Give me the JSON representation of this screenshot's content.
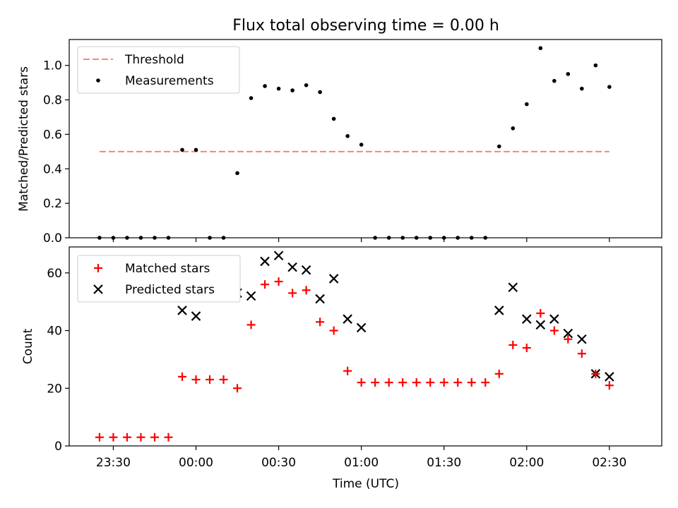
{
  "figure": {
    "title": "Flux total observing time = 0.00 h"
  },
  "chart_data": [
    {
      "type": "scatter",
      "ylabel": "Matched/Predicted stars",
      "ylim": [
        0.0,
        1.15
      ],
      "yticks": [
        "0.0",
        "0.2",
        "0.4",
        "0.6",
        "0.8",
        "1.0"
      ],
      "ytick_values": [
        0.0,
        0.2,
        0.4,
        0.6,
        0.8,
        1.0
      ],
      "legend_position": "upper-left",
      "legend": [
        "Threshold",
        "Measurements"
      ],
      "threshold": {
        "name": "Threshold",
        "y": 0.5,
        "x_start": "23:25",
        "x_end": "02:30",
        "color": "#ff8080"
      },
      "series": [
        {
          "name": "Measurements",
          "color": "#000000",
          "x": [
            "23:25",
            "23:30",
            "23:35",
            "23:40",
            "23:45",
            "23:50",
            "23:55",
            "00:00",
            "00:05",
            "00:10",
            "00:15",
            "00:20",
            "00:25",
            "00:30",
            "00:35",
            "00:40",
            "00:45",
            "00:50",
            "00:55",
            "01:00",
            "01:05",
            "01:10",
            "01:15",
            "01:20",
            "01:25",
            "01:30",
            "01:35",
            "01:40",
            "01:45",
            "01:50",
            "01:55",
            "02:00",
            "02:05",
            "02:10",
            "02:15",
            "02:20",
            "02:25",
            "02:30"
          ],
          "y": [
            0,
            0,
            0,
            0,
            0,
            0,
            0.51,
            0.51,
            0,
            0,
            0.375,
            0.81,
            0.88,
            0.865,
            0.855,
            0.885,
            0.845,
            0.69,
            0.59,
            0.54,
            0,
            0,
            0,
            0,
            0,
            0,
            0,
            0,
            0,
            0.53,
            0.635,
            0.775,
            1.1,
            0.91,
            0.95,
            0.865,
            1.0,
            0.875
          ]
        }
      ]
    },
    {
      "type": "scatter",
      "xlabel": "Time (UTC)",
      "ylabel": "Count",
      "ylim": [
        0,
        69
      ],
      "yticks": [
        "0",
        "20",
        "40",
        "60"
      ],
      "ytick_values": [
        0,
        20,
        40,
        60
      ],
      "xticks": [
        "23:30",
        "00:00",
        "00:30",
        "01:00",
        "01:30",
        "02:00",
        "02:30"
      ],
      "xlim": [
        "23:14",
        "02:49"
      ],
      "legend_position": "upper-left",
      "legend": [
        "Matched stars",
        "Predicted stars"
      ],
      "series": [
        {
          "name": "Matched stars",
          "marker": "+",
          "color": "#ff0000",
          "x": [
            "23:25",
            "23:30",
            "23:35",
            "23:40",
            "23:45",
            "23:50",
            "23:55",
            "00:00",
            "00:05",
            "00:10",
            "00:15",
            "00:20",
            "00:25",
            "00:30",
            "00:35",
            "00:40",
            "00:45",
            "00:50",
            "00:55",
            "01:00",
            "01:05",
            "01:10",
            "01:15",
            "01:20",
            "01:25",
            "01:30",
            "01:35",
            "01:40",
            "01:45",
            "01:50",
            "01:55",
            "02:00",
            "02:05",
            "02:10",
            "02:15",
            "02:20",
            "02:25",
            "02:30"
          ],
          "y": [
            3,
            3,
            3,
            3,
            3,
            3,
            24,
            23,
            23,
            23,
            20,
            42,
            56,
            57,
            53,
            54,
            43,
            40,
            26,
            22,
            22,
            22,
            22,
            22,
            22,
            22,
            22,
            22,
            22,
            25,
            35,
            34,
            46,
            40,
            37,
            32,
            25,
            21
          ]
        },
        {
          "name": "Predicted stars",
          "marker": "x",
          "color": "#000000",
          "x": [
            "23:55",
            "00:00",
            "00:15",
            "00:20",
            "00:25",
            "00:30",
            "00:35",
            "00:40",
            "00:45",
            "00:50",
            "00:55",
            "01:00",
            "01:50",
            "01:55",
            "02:00",
            "02:05",
            "02:10",
            "02:15",
            "02:20",
            "02:25",
            "02:30"
          ],
          "y": [
            47,
            45,
            53,
            52,
            64,
            66,
            62,
            61,
            51,
            58,
            44,
            41,
            47,
            55,
            44,
            42,
            44,
            39,
            37,
            25,
            24
          ]
        }
      ]
    }
  ]
}
